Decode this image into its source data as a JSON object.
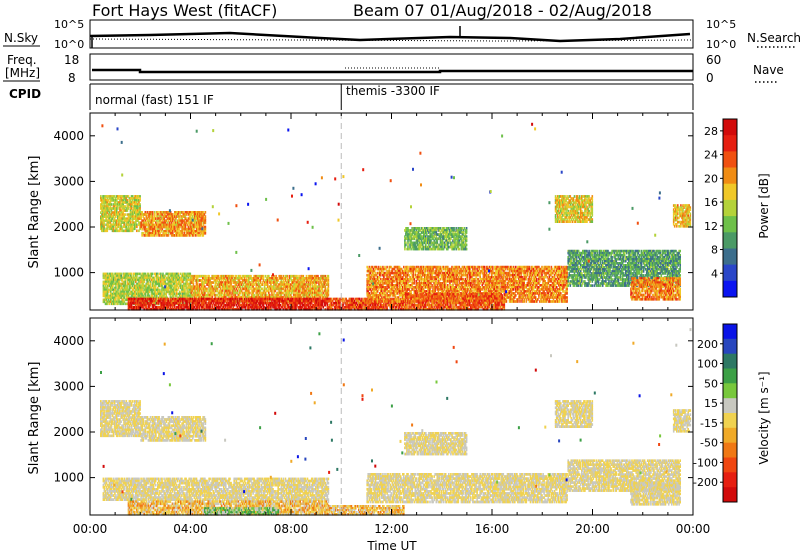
{
  "header": {
    "title": "Fort Hays West (fitACF)",
    "beam_info": "Beam 07 01/Aug/2018 - 02/Aug/2018"
  },
  "noise_panel": {
    "left_label": "N.Sky",
    "left_ticks": [
      "10^5",
      "10^0"
    ],
    "right_ticks": [
      "10^5",
      "10^0"
    ],
    "right_label": "N.Search"
  },
  "freq_panel": {
    "left_label_1": "Freq.",
    "left_label_2": "[MHz]",
    "left_ticks": [
      "18",
      "8"
    ],
    "right_ticks": [
      "60",
      "0"
    ],
    "right_label": "Nave"
  },
  "cpid_panel": {
    "label": "CPID",
    "segments": [
      "normal (fast) 151 IF",
      "themis -3300 IF"
    ],
    "switch_time_hours": 10.0
  },
  "chart_data": [
    {
      "type": "heatmap",
      "name": "power",
      "ylabel": "Slant Range [km]",
      "xlabel": "",
      "ylim": [
        180,
        4500
      ],
      "yticks": [
        "1000",
        "2000",
        "3000",
        "4000"
      ],
      "xlim": [
        0,
        24
      ],
      "colorbar": {
        "label": "Power [dB]",
        "ticks": [
          "4",
          "8",
          "12",
          "16",
          "20",
          "24",
          "28"
        ],
        "range": [
          0,
          30
        ],
        "colors": [
          "#0a14f0",
          "#2a46c8",
          "#3c6e8c",
          "#4b9a66",
          "#6ec04a",
          "#b4d23a",
          "#f0c828",
          "#f08c14",
          "#f05010",
          "#e61e10",
          "#d20a0a"
        ]
      },
      "regions": [
        {
          "t0": 0.4,
          "t1": 2.0,
          "r0": 1900,
          "r1": 2700,
          "value": 16
        },
        {
          "t0": 2.0,
          "t1": 4.6,
          "r0": 1800,
          "r1": 2350,
          "value": 20
        },
        {
          "t0": 0.5,
          "t1": 4.0,
          "r0": 300,
          "r1": 1000,
          "value": 15
        },
        {
          "t0": 4.0,
          "t1": 9.5,
          "r0": 350,
          "r1": 950,
          "value": 19
        },
        {
          "t0": 1.5,
          "t1": 9.5,
          "r0": 180,
          "r1": 450,
          "value": 26
        },
        {
          "t0": 9.5,
          "t1": 12.5,
          "r0": 180,
          "r1": 450,
          "value": 24
        },
        {
          "t0": 11.0,
          "t1": 19.0,
          "r0": 350,
          "r1": 1150,
          "value": 21
        },
        {
          "t0": 12.5,
          "t1": 16.5,
          "r0": 180,
          "r1": 550,
          "value": 23
        },
        {
          "t0": 19.0,
          "t1": 23.5,
          "r0": 700,
          "r1": 1500,
          "value": 10
        },
        {
          "t0": 21.5,
          "t1": 23.5,
          "r0": 400,
          "r1": 900,
          "value": 21
        },
        {
          "t0": 12.5,
          "t1": 15.0,
          "r0": 1500,
          "r1": 2000,
          "value": 12
        },
        {
          "t0": 18.5,
          "t1": 20.0,
          "r0": 2100,
          "r1": 2700,
          "value": 17
        },
        {
          "t0": 23.2,
          "t1": 23.9,
          "r0": 2000,
          "r1": 2500,
          "value": 18
        }
      ]
    },
    {
      "type": "heatmap",
      "name": "velocity",
      "ylabel": "Slant Range [km]",
      "xlabel": "Time UT",
      "ylim": [
        180,
        4500
      ],
      "yticks": [
        "1000",
        "2000",
        "3000",
        "4000"
      ],
      "xlim": [
        0,
        24
      ],
      "xticks": [
        "00:00",
        "04:00",
        "08:00",
        "12:00",
        "16:00",
        "20:00",
        "00:00"
      ],
      "colorbar": {
        "label": "Velocity [m s⁻¹]",
        "ticks": [
          "200",
          "100",
          "50",
          "15",
          "-15",
          "-50",
          "-100",
          "-200"
        ],
        "range": [
          -250,
          250
        ],
        "colors": [
          "#0a14e6",
          "#2846be",
          "#2d7864",
          "#3ca046",
          "#78c83c",
          "#c8c8c0",
          "#f0d250",
          "#f0aa28",
          "#f07814",
          "#f04610",
          "#e61e10",
          "#d20a0a"
        ]
      },
      "regions": [
        {
          "t0": 0.4,
          "t1": 2.0,
          "r0": 1900,
          "r1": 2700,
          "value": 0
        },
        {
          "t0": 2.0,
          "t1": 4.6,
          "r0": 1800,
          "r1": 2350,
          "value": 0
        },
        {
          "t0": 0.5,
          "t1": 9.5,
          "r0": 500,
          "r1": 1000,
          "value": 0
        },
        {
          "t0": 1.5,
          "t1": 9.5,
          "r0": 180,
          "r1": 500,
          "value": -40
        },
        {
          "t0": 4.5,
          "t1": 7.5,
          "r0": 180,
          "r1": 350,
          "value": 60
        },
        {
          "t0": 9.5,
          "t1": 12.5,
          "r0": 180,
          "r1": 400,
          "value": -40
        },
        {
          "t0": 11.0,
          "t1": 19.0,
          "r0": 450,
          "r1": 1100,
          "value": 0
        },
        {
          "t0": 19.0,
          "t1": 23.5,
          "r0": 700,
          "r1": 1400,
          "value": 0
        },
        {
          "t0": 21.5,
          "t1": 23.5,
          "r0": 400,
          "r1": 900,
          "value": 0
        },
        {
          "t0": 12.5,
          "t1": 15.0,
          "r0": 1500,
          "r1": 2000,
          "value": 0
        },
        {
          "t0": 18.5,
          "t1": 20.0,
          "r0": 2100,
          "r1": 2700,
          "value": 0
        },
        {
          "t0": 23.2,
          "t1": 23.9,
          "r0": 2000,
          "r1": 2500,
          "value": 0
        }
      ]
    }
  ]
}
